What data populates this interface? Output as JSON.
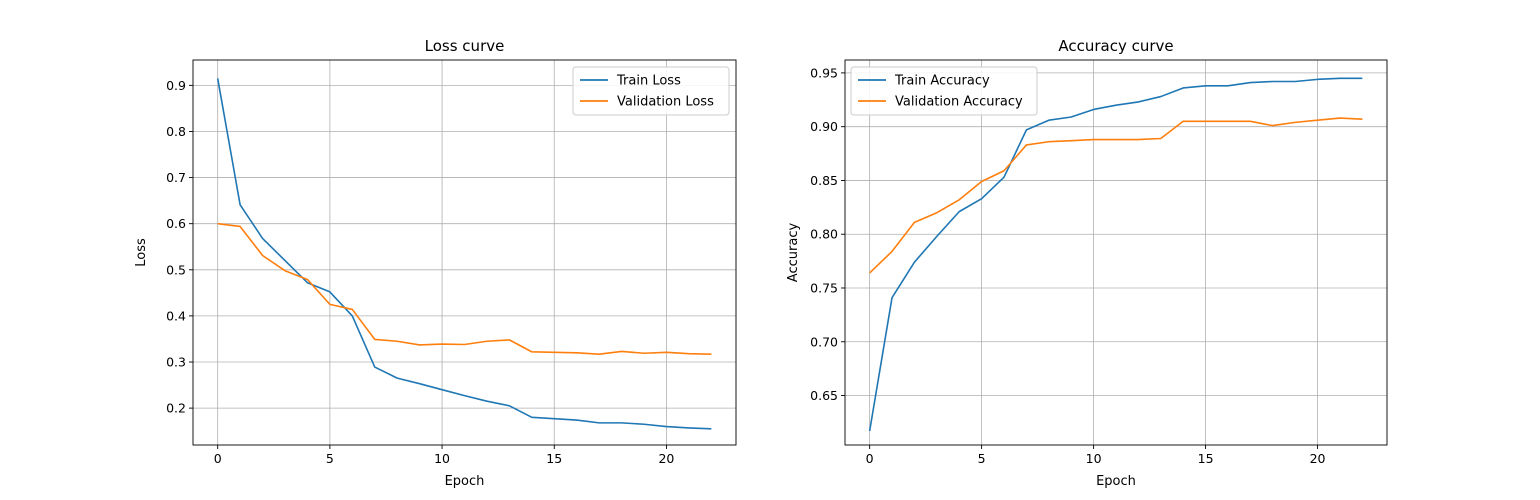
{
  "chart_data": [
    {
      "type": "line",
      "title": "Loss curve",
      "xlabel": "Epoch",
      "ylabel": "Loss",
      "xlim": [
        -1.1,
        23.1
      ],
      "ylim": [
        0.12,
        0.955
      ],
      "xticks": [
        0,
        5,
        10,
        15,
        20
      ],
      "yticks": [
        0.2,
        0.3,
        0.4,
        0.5,
        0.6,
        0.7,
        0.8,
        0.9
      ],
      "tick_decimals": 1,
      "grid": true,
      "legend_position": "top-right",
      "x": [
        0,
        1,
        2,
        3,
        4,
        5,
        6,
        7,
        8,
        9,
        10,
        11,
        12,
        13,
        14,
        15,
        16,
        17,
        18,
        19,
        20,
        21,
        22
      ],
      "series": [
        {
          "name": "Train Loss",
          "color": "#1f77b4",
          "values": [
            0.915,
            0.641,
            0.568,
            0.52,
            0.472,
            0.452,
            0.4,
            0.289,
            0.265,
            0.253,
            0.24,
            0.227,
            0.215,
            0.205,
            0.18,
            0.177,
            0.174,
            0.168,
            0.168,
            0.165,
            0.16,
            0.157,
            0.155
          ]
        },
        {
          "name": "Validation Loss",
          "color": "#ff7f0e",
          "values": [
            0.6,
            0.594,
            0.531,
            0.498,
            0.479,
            0.425,
            0.414,
            0.349,
            0.345,
            0.337,
            0.339,
            0.338,
            0.345,
            0.348,
            0.322,
            0.321,
            0.32,
            0.317,
            0.323,
            0.319,
            0.321,
            0.318,
            0.317
          ]
        }
      ]
    },
    {
      "type": "line",
      "title": "Accuracy curve",
      "xlabel": "Epoch",
      "ylabel": "Accuracy",
      "xlim": [
        -1.1,
        23.1
      ],
      "ylim": [
        0.604,
        0.962
      ],
      "xticks": [
        0,
        5,
        10,
        15,
        20
      ],
      "yticks": [
        0.65,
        0.7,
        0.75,
        0.8,
        0.85,
        0.9,
        0.95
      ],
      "tick_decimals": 2,
      "grid": true,
      "legend_position": "top-left",
      "x": [
        0,
        1,
        2,
        3,
        4,
        5,
        6,
        7,
        8,
        9,
        10,
        11,
        12,
        13,
        14,
        15,
        16,
        17,
        18,
        19,
        20,
        21,
        22
      ],
      "series": [
        {
          "name": "Train Accuracy",
          "color": "#1f77b4",
          "values": [
            0.617,
            0.741,
            0.774,
            0.798,
            0.821,
            0.833,
            0.853,
            0.897,
            0.906,
            0.909,
            0.916,
            0.92,
            0.923,
            0.928,
            0.936,
            0.938,
            0.938,
            0.941,
            0.942,
            0.942,
            0.944,
            0.945,
            0.945
          ]
        },
        {
          "name": "Validation Accuracy",
          "color": "#ff7f0e",
          "values": [
            0.764,
            0.784,
            0.811,
            0.82,
            0.832,
            0.849,
            0.859,
            0.883,
            0.886,
            0.887,
            0.888,
            0.888,
            0.888,
            0.889,
            0.905,
            0.905,
            0.905,
            0.905,
            0.901,
            0.904,
            0.906,
            0.908,
            0.907
          ]
        }
      ]
    }
  ]
}
